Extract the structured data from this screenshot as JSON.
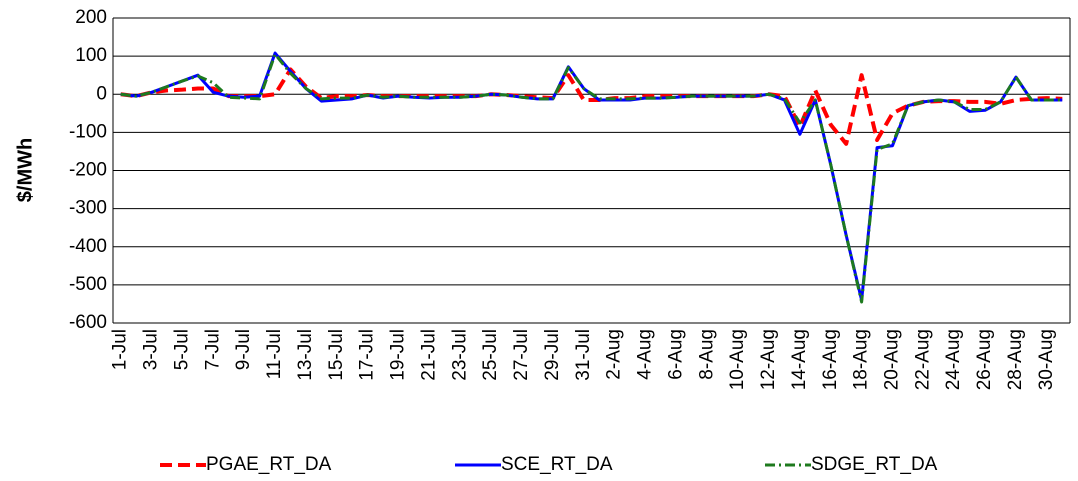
{
  "chart_data": {
    "type": "line",
    "y_label": "$/MWh",
    "categories": [
      "1-Jul",
      null,
      "3-Jul",
      null,
      "5-Jul",
      null,
      "7-Jul",
      null,
      "9-Jul",
      null,
      "11-Jul",
      null,
      "13-Jul",
      null,
      "15-Jul",
      null,
      "17-Jul",
      null,
      "19-Jul",
      null,
      "21-Jul",
      null,
      "23-Jul",
      null,
      "25-Jul",
      null,
      "27-Jul",
      null,
      "29-Jul",
      null,
      "31-Jul",
      null,
      "2-Aug",
      null,
      "4-Aug",
      null,
      "6-Aug",
      null,
      "8-Aug",
      null,
      "10-Aug",
      null,
      "12-Aug",
      null,
      "14-Aug",
      null,
      "16-Aug",
      null,
      "18-Aug",
      null,
      "20-Aug",
      null,
      "22-Aug",
      null,
      "24-Aug",
      null,
      "26-Aug",
      null,
      "28-Aug",
      null,
      "30-Aug",
      null
    ],
    "series": [
      {
        "name": "PGAE_RT_DA",
        "color": "#ff0000",
        "dash": "12,6",
        "values": [
          0,
          -5,
          5,
          10,
          12,
          15,
          15,
          -5,
          -5,
          -5,
          0,
          65,
          20,
          -10,
          -5,
          -5,
          -2,
          -5,
          -5,
          -5,
          -5,
          -5,
          -5,
          -5,
          0,
          -2,
          -5,
          -8,
          -10,
          50,
          -15,
          -15,
          -10,
          -10,
          -5,
          -5,
          -5,
          -5,
          -5,
          -5,
          -5,
          -5,
          0,
          -5,
          -85,
          10,
          -80,
          -130,
          50,
          -120,
          -50,
          -30,
          -20,
          -18,
          -18,
          -20,
          -20,
          -25,
          -15,
          -12,
          -10,
          -12
        ]
      },
      {
        "name": "SCE_RT_DA",
        "color": "#0000ff",
        "dash": "none",
        "values": [
          0,
          -5,
          5,
          20,
          35,
          50,
          5,
          -5,
          -8,
          -5,
          108,
          60,
          15,
          -18,
          -15,
          -12,
          -2,
          -10,
          -5,
          -8,
          -10,
          -8,
          -8,
          -5,
          0,
          -2,
          -8,
          -12,
          -12,
          72,
          15,
          -15,
          -15,
          -15,
          -10,
          -10,
          -8,
          -5,
          -5,
          -5,
          -5,
          -5,
          0,
          -15,
          -105,
          -15,
          -185,
          -370,
          -540,
          -140,
          -135,
          -30,
          -20,
          -15,
          -20,
          -45,
          -42,
          -20,
          45,
          -15,
          -15,
          -15
        ]
      },
      {
        "name": "SDGE_RT_DA",
        "color": "#1e7a1e",
        "dash": "10,4,2,4",
        "values": [
          0,
          -5,
          5,
          20,
          35,
          48,
          30,
          -8,
          -10,
          -12,
          105,
          55,
          15,
          -12,
          -10,
          -10,
          -2,
          -8,
          -5,
          -8,
          -8,
          -8,
          -8,
          -5,
          0,
          -2,
          -8,
          -12,
          -12,
          70,
          15,
          -12,
          -12,
          -12,
          -10,
          -10,
          -8,
          -5,
          -5,
          -5,
          -5,
          -5,
          0,
          -12,
          -75,
          -15,
          -185,
          -370,
          -545,
          -145,
          -130,
          -30,
          -20,
          -15,
          -20,
          -40,
          -40,
          -20,
          45,
          -15,
          -15,
          -15
        ]
      }
    ],
    "ylim": [
      -600,
      200
    ],
    "yticks": [
      -600,
      -500,
      -400,
      -300,
      -200,
      -100,
      0,
      100,
      200
    ],
    "grid": true
  }
}
